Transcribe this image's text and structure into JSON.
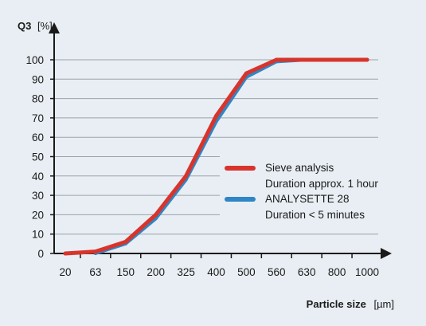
{
  "chart_data": {
    "type": "line",
    "ylabel_name": "Q3",
    "ylabel_unit": "[%]",
    "xlabel_name": "Particle size",
    "xlabel_unit": "[µm]",
    "x_tick_labels": [
      "20",
      "63",
      "150",
      "200",
      "325",
      "400",
      "500",
      "560",
      "630",
      "800",
      "1000"
    ],
    "y_tick_labels": [
      "0",
      "10",
      "20",
      "30",
      "40",
      "50",
      "60",
      "70",
      "80",
      "90",
      "100"
    ],
    "ylim": [
      0,
      100
    ],
    "grid": "horizontal",
    "legend_position": "center-right",
    "series": [
      {
        "name": "Sieve analysis",
        "description": "Duration approx. 1 hour",
        "color": "#d8342c",
        "x": [
          "20",
          "63",
          "150",
          "200",
          "325",
          "400",
          "500",
          "560",
          "630",
          "800",
          "1000"
        ],
        "y": [
          0,
          1,
          6,
          20,
          40,
          71,
          93,
          100,
          100,
          100,
          100
        ]
      },
      {
        "name": "ANALYSETTE 28",
        "description": "Duration < 5 minutes",
        "color": "#2f86c6",
        "x": [
          "63",
          "150",
          "200",
          "325",
          "400",
          "500",
          "560",
          "630"
        ],
        "y": [
          0,
          5,
          18,
          38,
          68,
          91,
          99,
          100
        ]
      }
    ]
  }
}
